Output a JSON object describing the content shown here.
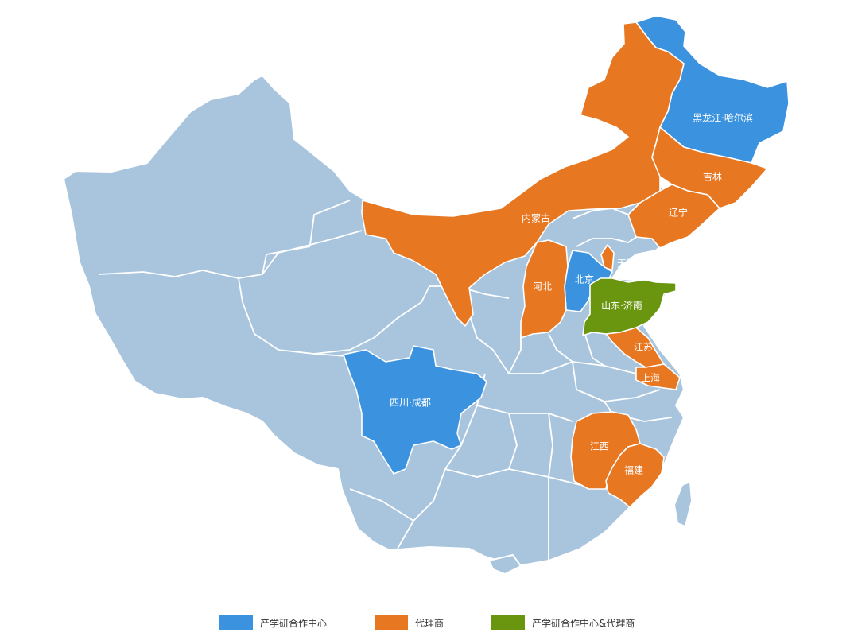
{
  "colors": {
    "base": "#a9c5de",
    "center": "#3b93e0",
    "agent": "#e87722",
    "both": "#6a960f"
  },
  "legend": [
    {
      "label": "产学研合作中心",
      "category": "center"
    },
    {
      "label": "代理商",
      "category": "agent"
    },
    {
      "label": "产学研合作中心&代理商",
      "category": "both"
    }
  ],
  "regions": {
    "heilongjiang": {
      "label": "黑龙江·哈尔滨",
      "category": "center"
    },
    "jilin": {
      "label": "吉林",
      "category": "agent"
    },
    "liaoning": {
      "label": "辽宁",
      "category": "agent"
    },
    "neimenggu": {
      "label": "内蒙古",
      "category": "agent"
    },
    "beijing": {
      "label": "北京",
      "category": "center"
    },
    "tianjin": {
      "label": "天津",
      "category": "agent"
    },
    "hebei": {
      "label": "河北",
      "category": "agent"
    },
    "shandong": {
      "label": "山东·济南",
      "category": "both"
    },
    "jiangsu": {
      "label": "江苏",
      "category": "agent"
    },
    "shanghai": {
      "label": "上海",
      "category": "agent"
    },
    "sichuan": {
      "label": "四川·成都",
      "category": "center"
    },
    "jiangxi": {
      "label": "江西",
      "category": "agent"
    },
    "fujian": {
      "label": "福建",
      "category": "agent"
    }
  }
}
